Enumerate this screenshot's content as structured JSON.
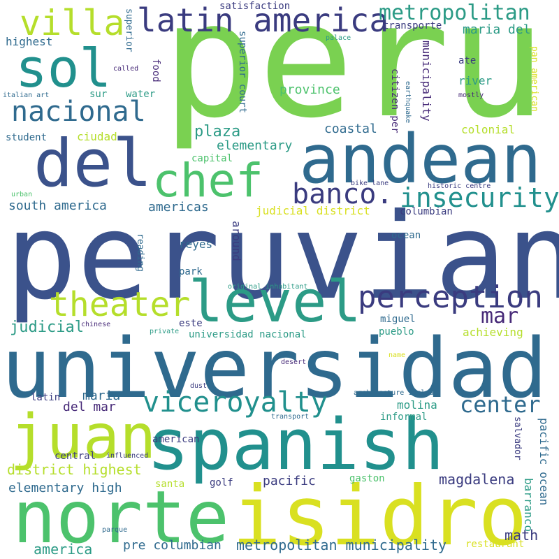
{
  "words": {
    "peru": "peru",
    "peruvian": "peruvian",
    "universidad": "universidad",
    "spanish": "spanish",
    "andean": "andean",
    "isidro": "isidro",
    "norte": "norte",
    "juan": "juan",
    "del": "del",
    "sol": "sol",
    "level": "level",
    "chef": "chef",
    "latin_america": "latin america",
    "villa": "villa",
    "metropolitan": "metropolitan",
    "nacional": "nacional",
    "perception": "perception",
    "theater": "theater",
    "viceroyalty": "viceroyalty",
    "insecurity": "insecurity",
    "banco": "banco.",
    "center": "center",
    "mar": "mar",
    "magdalena": "magdalena",
    "plaza": "plaza",
    "province": "province",
    "coastal": "coastal",
    "south_america": "south america",
    "americas": "americas",
    "elementary": "elementary",
    "judicial": "judicial",
    "maria": "maria",
    "del_mar": "del mar",
    "molina": "molina",
    "district_highest": "district highest",
    "elementary_high": "elementary high",
    "pacific": "pacific",
    "pre_columbian": "pre columbian",
    "metropolitan_municipality": "metropolitan municipality",
    "america": "america",
    "math": "math",
    "maria_del": "maria del",
    "highest": "highest",
    "municipality": "municipality",
    "superior_court": "superior court",
    "around": "around",
    "citizen_per": "citizen per",
    "colonial": "colonial",
    "capital": "capital",
    "reyes": "reyes",
    "park": "park",
    "reading": "reading",
    "student": "student",
    "ciudad": "ciudad",
    "sur": "sur",
    "water": "water",
    "food": "food",
    "superior": "superior",
    "satisfaction": "satisfaction",
    "transporte": "transporte",
    "palace": "palace",
    "ate": "ate",
    "river": "river",
    "mostly": "mostly",
    "pan_american": "pan american",
    "earthquake": "earthquake",
    "called": "called",
    "italian_art": "italian art",
    "judicial_district": "judicial district",
    "columbian": "columbian",
    "ocean": "ocean",
    "bike_lane": "bike lane",
    "historic_centre": "historic centre",
    "urban": "urban",
    "original_inhabitant": "original inhabitant",
    "este": "este",
    "miguel": "miguel",
    "pueblo": "pueblo",
    "achieving": "achieving",
    "chinese": "chinese",
    "private": "private",
    "universidad_nacional": "universidad nacional",
    "desert": "desert",
    "name": "name",
    "dust": "dust",
    "architecture_include": "architecture include",
    "latin": "latin",
    "transport": "transport",
    "informal": "informal",
    "pacific_ocean": "pacific ocean",
    "american": "american",
    "salvador": "salvador",
    "barranco": "barranco",
    "central": "central",
    "influenced": "influenced",
    "santa": "santa",
    "golf": "golf",
    "gaston": "gaston",
    "parque": "parque",
    "restaurant": "restaurant"
  },
  "colors": {
    "dark_indigo": "#3a3b7f",
    "purple": "#472a78",
    "blue": "#3b528b",
    "steel_blue": "#2f6a8e",
    "teal": "#21908d",
    "sea_green": "#2c9b86",
    "green": "#4cc26c",
    "lime": "#7ad151",
    "yellow_green": "#b5de2b",
    "yellow": "#d9e021"
  }
}
